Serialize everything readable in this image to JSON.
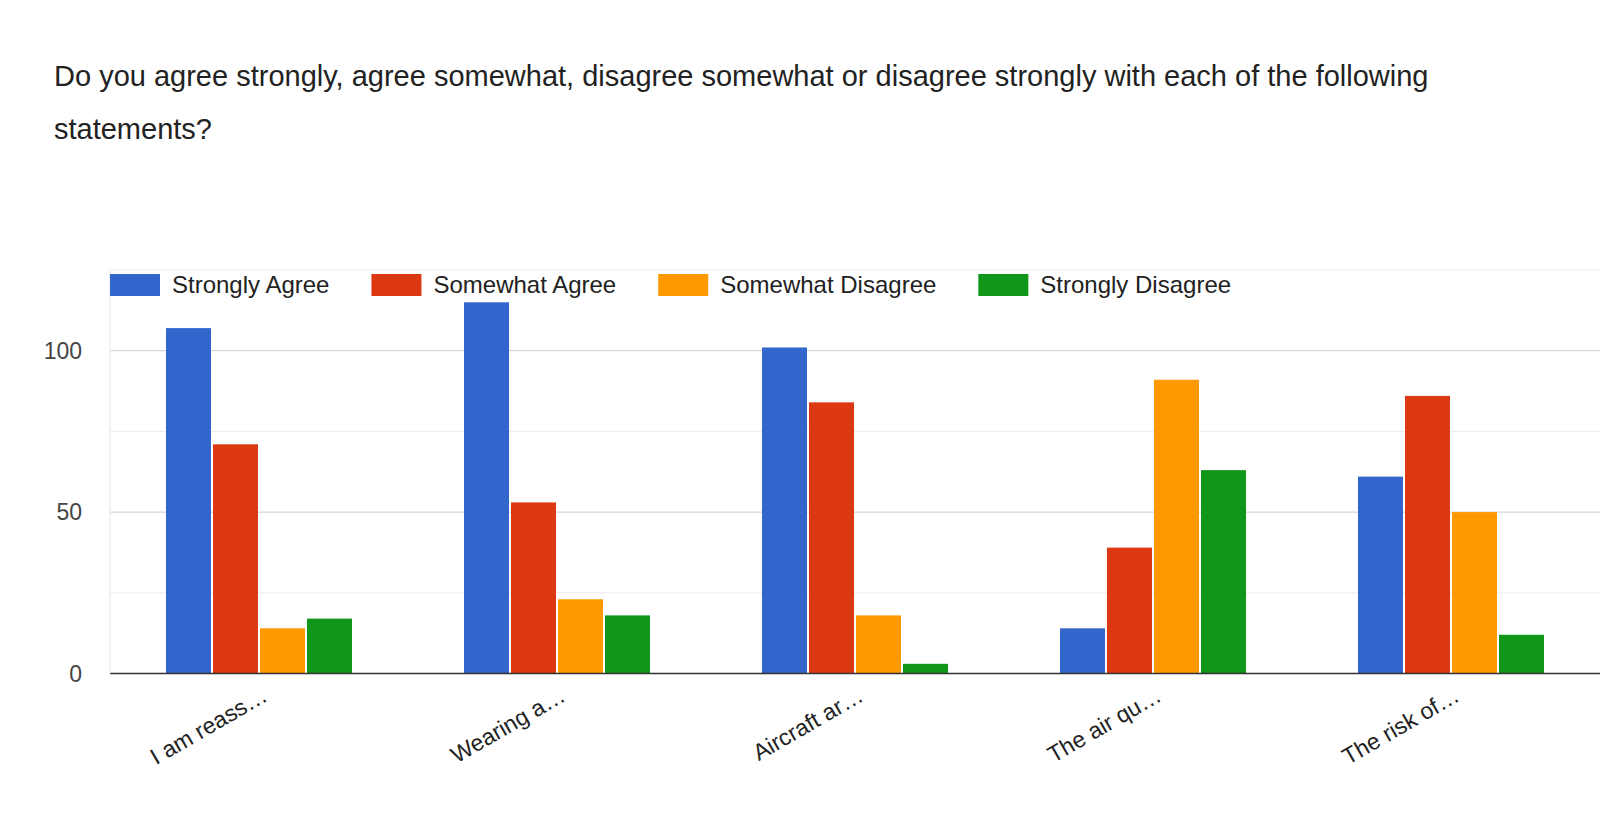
{
  "chart_data": {
    "type": "bar",
    "title": "Do you agree strongly, agree somewhat, disagree somewhat or disagree strongly with each of the following statements?",
    "categories": [
      "I am reass…",
      "Wearing a…",
      "Aircraft ar…",
      "The air qu…",
      "The risk of…"
    ],
    "series": [
      {
        "name": "Strongly Agree",
        "color": "#3366cc",
        "values": [
          107,
          115,
          101,
          14,
          61
        ]
      },
      {
        "name": "Somewhat Agree",
        "color": "#dc3912",
        "values": [
          71,
          53,
          84,
          39,
          86
        ]
      },
      {
        "name": "Somewhat Disagree",
        "color": "#ff9900",
        "values": [
          14,
          23,
          18,
          91,
          50
        ]
      },
      {
        "name": "Strongly Disagree",
        "color": "#109618",
        "values": [
          17,
          18,
          3,
          63,
          12
        ]
      }
    ],
    "ylim": [
      0,
      125
    ],
    "yticks": [
      0,
      50,
      100
    ],
    "grid": true,
    "legend": "top"
  }
}
